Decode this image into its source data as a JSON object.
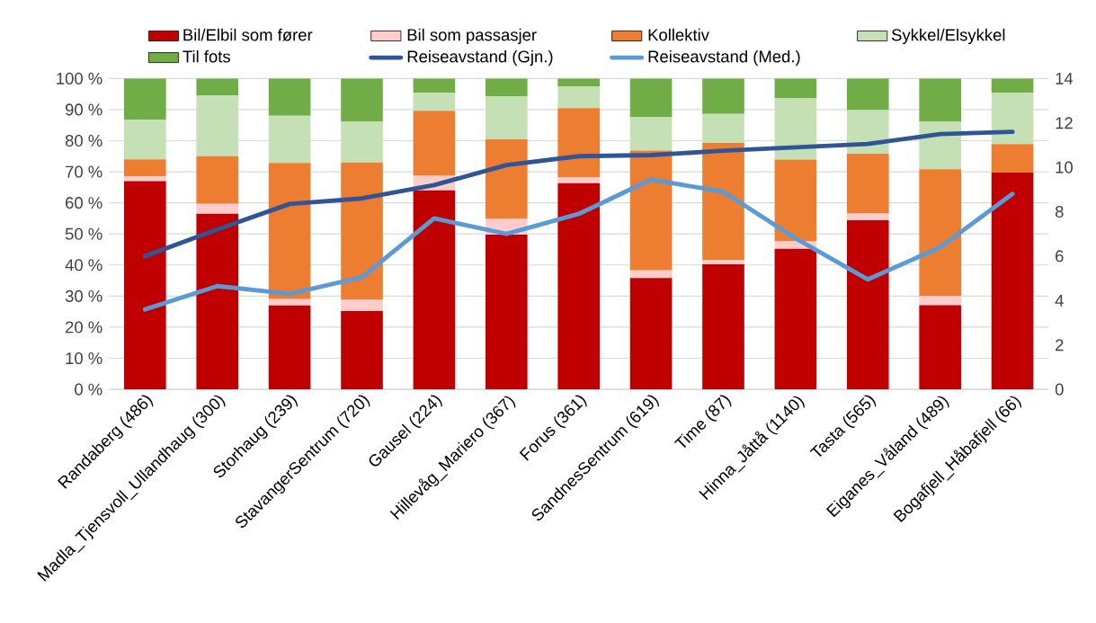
{
  "chart_data": {
    "type": "bar",
    "stacked": true,
    "categories": [
      "Randaberg (486)",
      "Madla_Tjensvoll_Ullandhaug (300)",
      "Storhaug (239)",
      "StavangerSentrum (720)",
      "Gausel (224)",
      "Hillevåg_Mariero (367)",
      "Forus (361)",
      "SandnesSentrum (619)",
      "Time (87)",
      "Hinna_Jåttå (1140)",
      "Tasta (565)",
      "Eiganes_Våland (489)",
      "Bogafjell_Håbafjell (66)"
    ],
    "series": [
      {
        "name": "Bil/Elbil som fører",
        "color": "#c00000",
        "values": [
          67,
          56.5,
          27,
          25.2,
          64,
          49.8,
          66.3,
          35.8,
          40.2,
          45.2,
          54.4,
          27.1,
          69.7
        ]
      },
      {
        "name": "Bil som passasjer",
        "color": "#ffcccc",
        "values": [
          1.5,
          3.2,
          2,
          3.6,
          4.7,
          5,
          1.9,
          2.5,
          1.3,
          2.4,
          2.2,
          3,
          0
        ]
      },
      {
        "name": "Kollektiv",
        "color": "#ed7d31",
        "values": [
          5.5,
          15.3,
          43.8,
          44.2,
          20.9,
          25.6,
          22.3,
          38.5,
          37.8,
          26.3,
          19.2,
          40.7,
          9.2
        ]
      },
      {
        "name": "Sykkel/Elsykkel",
        "color": "#c5e0b4",
        "values": [
          12.7,
          19.5,
          15.2,
          13.2,
          5.9,
          13.9,
          7,
          10.7,
          9.3,
          19.7,
          14,
          15.4,
          16.5
        ]
      },
      {
        "name": "Til fots",
        "color": "#70ad47",
        "values": [
          13.3,
          5.5,
          12,
          13.8,
          4.5,
          5.7,
          2.5,
          12.5,
          11.4,
          6.4,
          10.2,
          13.8,
          4.6
        ]
      },
      {
        "name": "Reiseavstand (Gjn.)",
        "type": "line",
        "axis": "y2",
        "color": "#2f5597",
        "values": [
          6.0,
          7.2,
          8.35,
          8.6,
          9.2,
          10.1,
          10.5,
          10.55,
          10.75,
          10.9,
          11.05,
          11.5,
          11.6
        ]
      },
      {
        "name": "Reiseavstand (Med.)",
        "type": "line",
        "axis": "y2",
        "color": "#5b9bd5",
        "values": [
          3.6,
          4.65,
          4.3,
          5.05,
          7.7,
          7.0,
          7.9,
          9.45,
          8.9,
          6.8,
          4.95,
          6.4,
          8.8
        ]
      }
    ],
    "ylim": [
      0,
      100
    ],
    "yticks": [
      {
        "value": 0,
        "label": "0 %"
      },
      {
        "value": 10,
        "label": "10 %"
      },
      {
        "value": 20,
        "label": "20 %"
      },
      {
        "value": 30,
        "label": "30 %"
      },
      {
        "value": 40,
        "label": "40 %"
      },
      {
        "value": 50,
        "label": "50 %"
      },
      {
        "value": 60,
        "label": "60 %"
      },
      {
        "value": 70,
        "label": "70 %"
      },
      {
        "value": 80,
        "label": "80 %"
      },
      {
        "value": 90,
        "label": "90 %"
      },
      {
        "value": 100,
        "label": "100 %"
      }
    ],
    "y2lim": [
      0,
      14
    ],
    "y2ticks": [
      0,
      2,
      4,
      6,
      8,
      10,
      12,
      14
    ],
    "grid": "y",
    "legend": "top"
  }
}
